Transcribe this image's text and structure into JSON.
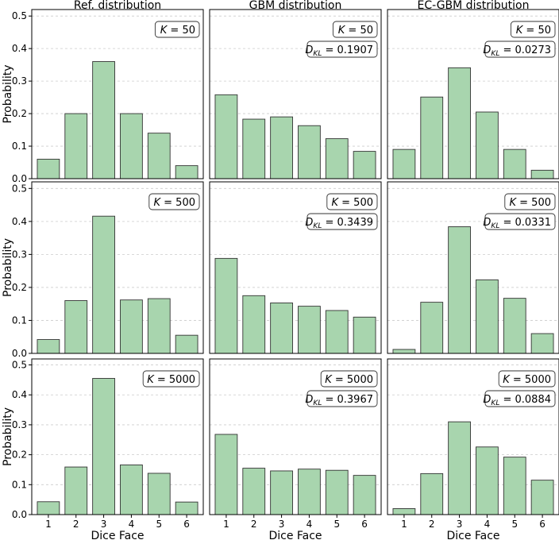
{
  "chart_data": {
    "type": "bar",
    "layout": "3x3 grid",
    "column_titles": [
      "Ref. distribution",
      "GBM distribution",
      "EC-GBM distribution"
    ],
    "xlabel": "Dice Face",
    "ylabel": "Probability",
    "categories": [
      "1",
      "2",
      "3",
      "4",
      "5",
      "6"
    ],
    "ylim": [
      0,
      0.52
    ],
    "yticks": [
      "0.0",
      "0.1",
      "0.2",
      "0.3",
      "0.4",
      "0.5"
    ],
    "grid": "horizontal dashed",
    "colors": {
      "bar_fill": "#a8d5ae",
      "bar_edge": "#333333",
      "grid": "#cccccc"
    },
    "panels": [
      {
        "row": 0,
        "col": 0,
        "k_label": "K = 50",
        "values": [
          0.06,
          0.2,
          0.36,
          0.2,
          0.14,
          0.04
        ]
      },
      {
        "row": 0,
        "col": 1,
        "k_label": "K = 50",
        "dkl_label": "D_KL = 0.1907",
        "values": [
          0.258,
          0.183,
          0.19,
          0.163,
          0.123,
          0.084
        ]
      },
      {
        "row": 0,
        "col": 2,
        "k_label": "K = 50",
        "dkl_label": "D_KL = 0.0273",
        "values": [
          0.09,
          0.251,
          0.341,
          0.205,
          0.09,
          0.026
        ]
      },
      {
        "row": 1,
        "col": 0,
        "k_label": "K = 500",
        "values": [
          0.042,
          0.16,
          0.416,
          0.162,
          0.166,
          0.055
        ]
      },
      {
        "row": 1,
        "col": 1,
        "k_label": "K = 500",
        "dkl_label": "D_KL = 0.3439",
        "values": [
          0.288,
          0.175,
          0.153,
          0.143,
          0.13,
          0.11
        ]
      },
      {
        "row": 1,
        "col": 2,
        "k_label": "K = 500",
        "dkl_label": "D_KL = 0.0331",
        "values": [
          0.012,
          0.155,
          0.384,
          0.223,
          0.167,
          0.06
        ]
      },
      {
        "row": 2,
        "col": 0,
        "k_label": "K = 5000",
        "values": [
          0.043,
          0.159,
          0.455,
          0.166,
          0.138,
          0.042
        ]
      },
      {
        "row": 2,
        "col": 1,
        "k_label": "K = 5000",
        "dkl_label": "D_KL = 0.3967",
        "values": [
          0.268,
          0.155,
          0.146,
          0.152,
          0.148,
          0.131
        ]
      },
      {
        "row": 2,
        "col": 2,
        "k_label": "K = 5000",
        "dkl_label": "D_KL = 0.0884",
        "values": [
          0.02,
          0.137,
          0.31,
          0.226,
          0.192,
          0.115
        ]
      }
    ]
  }
}
